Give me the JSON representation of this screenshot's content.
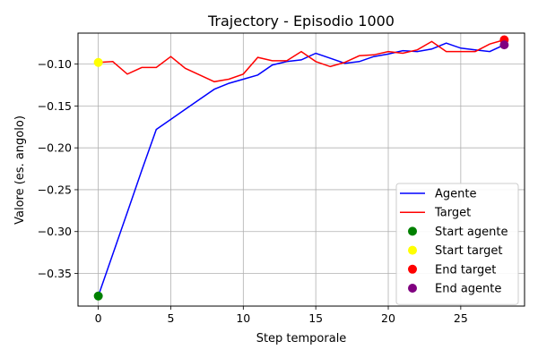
{
  "chart_data": {
    "type": "line",
    "title": "Trajectory - Episodio 1000",
    "xlabel": "Step temporale",
    "ylabel": "Valore (es. angolo)",
    "xlim": [
      -1.4,
      29.4
    ],
    "ylim": [
      -0.389,
      -0.063
    ],
    "xticks": [
      0,
      5,
      10,
      15,
      20,
      25
    ],
    "yticks": [
      -0.35,
      -0.3,
      -0.25,
      -0.2,
      -0.15,
      -0.1
    ],
    "xtick_labels": [
      "0",
      "5",
      "10",
      "15",
      "20",
      "25"
    ],
    "ytick_labels": [
      "−0.35",
      "−0.30",
      "−0.25",
      "−0.20",
      "−0.15",
      "−0.10"
    ],
    "grid": true,
    "legend_position": "lower-right",
    "series": [
      {
        "name": "Agente",
        "color": "#0000ff",
        "x": [
          0,
          1,
          2,
          3,
          4,
          5,
          6,
          7,
          8,
          9,
          10,
          11,
          12,
          13,
          14,
          15,
          16,
          17,
          18,
          19,
          20,
          21,
          22,
          23,
          24,
          25,
          26,
          27,
          28
        ],
        "y": [
          -0.377,
          -0.327,
          -0.277,
          -0.227,
          -0.178,
          -0.166,
          -0.154,
          -0.142,
          -0.13,
          -0.123,
          -0.118,
          -0.113,
          -0.101,
          -0.097,
          -0.095,
          -0.087,
          -0.093,
          -0.099,
          -0.097,
          -0.091,
          -0.088,
          -0.084,
          -0.085,
          -0.082,
          -0.075,
          -0.081,
          -0.083,
          -0.085,
          -0.077
        ]
      },
      {
        "name": "Target",
        "color": "#ff0000",
        "x": [
          0,
          1,
          2,
          3,
          4,
          5,
          6,
          7,
          8,
          9,
          10,
          11,
          12,
          13,
          14,
          15,
          16,
          17,
          18,
          19,
          20,
          21,
          22,
          23,
          24,
          25,
          26,
          27,
          28
        ],
        "y": [
          -0.098,
          -0.097,
          -0.112,
          -0.104,
          -0.104,
          -0.091,
          -0.105,
          -0.113,
          -0.121,
          -0.118,
          -0.112,
          -0.092,
          -0.096,
          -0.096,
          -0.085,
          -0.097,
          -0.103,
          -0.098,
          -0.09,
          -0.089,
          -0.085,
          -0.087,
          -0.083,
          -0.073,
          -0.085,
          -0.085,
          -0.085,
          -0.076,
          -0.071
        ]
      }
    ],
    "points": [
      {
        "name": "Start agente",
        "x": 0,
        "y": -0.377,
        "color": "#008000"
      },
      {
        "name": "Start target",
        "x": 0,
        "y": -0.098,
        "color": "#ffff00"
      },
      {
        "name": "End target",
        "x": 28,
        "y": -0.071,
        "color": "#ff0000"
      },
      {
        "name": "End agente",
        "x": 28,
        "y": -0.077,
        "color": "#800080"
      }
    ]
  }
}
